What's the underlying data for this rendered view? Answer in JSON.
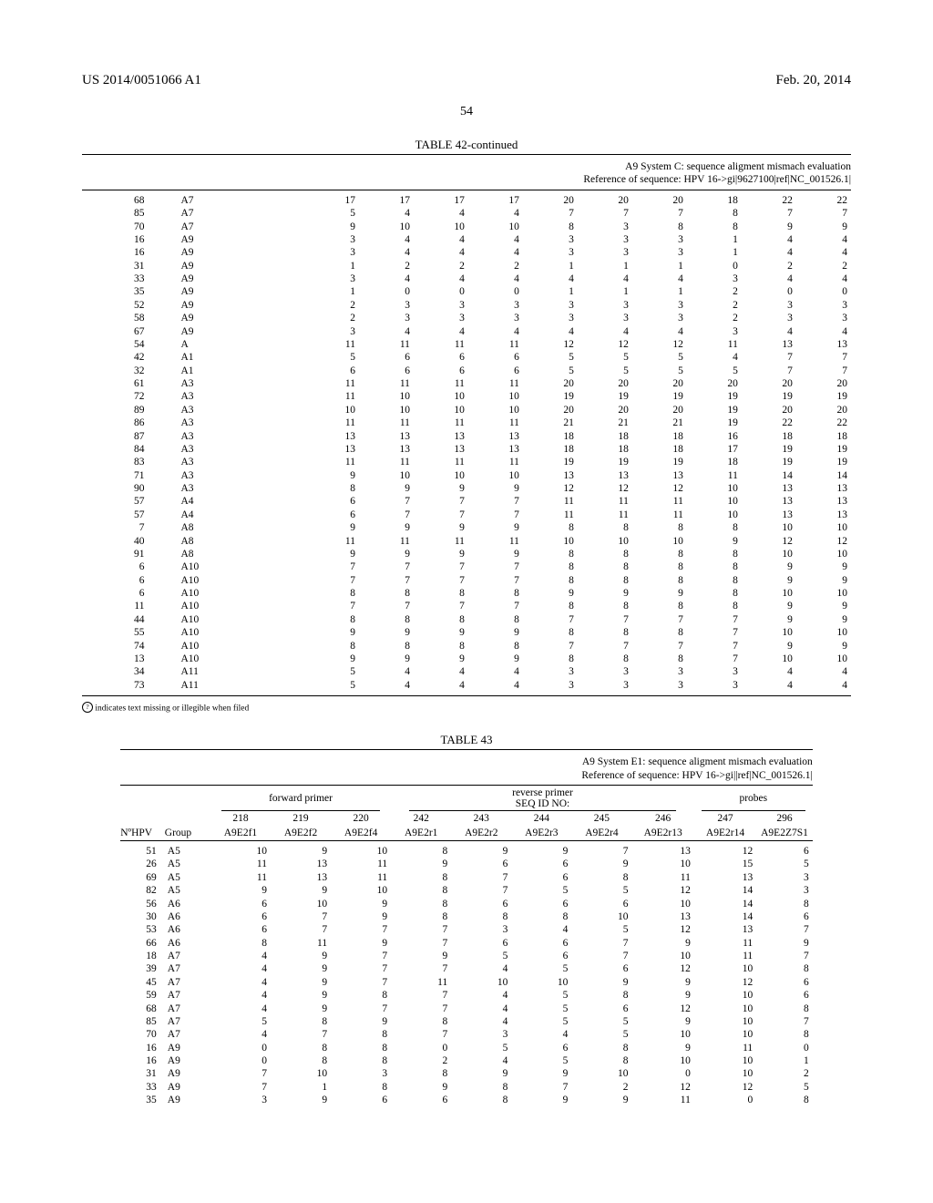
{
  "header": {
    "pub_no": "US 2014/0051066 A1",
    "date": "Feb. 20, 2014",
    "page_center": "54"
  },
  "table42": {
    "caption": "TABLE 42-continued",
    "subtitle_line1": "A9 System C: sequence aligment mismach evaluation",
    "subtitle_line2": "Reference of sequence: HPV 16->gi|9627100|ref|NC_001526.1|",
    "rows": [
      [
        68,
        "A7",
        17,
        17,
        17,
        17,
        20,
        20,
        20,
        18,
        22,
        22
      ],
      [
        85,
        "A7",
        5,
        4,
        4,
        4,
        7,
        7,
        7,
        8,
        7,
        7
      ],
      [
        70,
        "A7",
        9,
        10,
        10,
        10,
        8,
        3,
        8,
        8,
        9,
        9
      ],
      [
        16,
        "A9",
        3,
        4,
        4,
        4,
        3,
        3,
        3,
        1,
        4,
        4
      ],
      [
        16,
        "A9",
        3,
        4,
        4,
        4,
        3,
        3,
        3,
        1,
        4,
        4
      ],
      [
        31,
        "A9",
        1,
        2,
        2,
        2,
        1,
        1,
        1,
        0,
        2,
        2
      ],
      [
        33,
        "A9",
        3,
        4,
        4,
        4,
        4,
        4,
        4,
        3,
        4,
        4
      ],
      [
        35,
        "A9",
        1,
        0,
        0,
        0,
        1,
        1,
        1,
        2,
        0,
        0
      ],
      [
        52,
        "A9",
        2,
        3,
        3,
        3,
        3,
        3,
        3,
        2,
        3,
        3
      ],
      [
        58,
        "A9",
        2,
        3,
        3,
        3,
        3,
        3,
        3,
        2,
        3,
        3
      ],
      [
        67,
        "A9",
        3,
        4,
        4,
        4,
        4,
        4,
        4,
        3,
        4,
        4
      ],
      [
        54,
        "A",
        11,
        11,
        11,
        11,
        12,
        12,
        12,
        11,
        13,
        13
      ],
      [
        42,
        "A1",
        5,
        6,
        6,
        6,
        5,
        5,
        5,
        4,
        7,
        7
      ],
      [
        32,
        "A1",
        6,
        6,
        6,
        6,
        5,
        5,
        5,
        5,
        7,
        7
      ],
      [
        61,
        "A3",
        11,
        11,
        11,
        11,
        20,
        20,
        20,
        20,
        20,
        20
      ],
      [
        72,
        "A3",
        11,
        10,
        10,
        10,
        19,
        19,
        19,
        19,
        19,
        19
      ],
      [
        89,
        "A3",
        10,
        10,
        10,
        10,
        20,
        20,
        20,
        19,
        20,
        20
      ],
      [
        86,
        "A3",
        11,
        11,
        11,
        11,
        21,
        21,
        21,
        19,
        22,
        22
      ],
      [
        87,
        "A3",
        13,
        13,
        13,
        13,
        18,
        18,
        18,
        16,
        18,
        18
      ],
      [
        84,
        "A3",
        13,
        13,
        13,
        13,
        18,
        18,
        18,
        17,
        19,
        19
      ],
      [
        83,
        "A3",
        11,
        11,
        11,
        11,
        19,
        19,
        19,
        18,
        19,
        19
      ],
      [
        71,
        "A3",
        9,
        10,
        10,
        10,
        13,
        13,
        13,
        11,
        14,
        14
      ],
      [
        90,
        "A3",
        8,
        9,
        9,
        9,
        12,
        12,
        12,
        10,
        13,
        13
      ],
      [
        57,
        "A4",
        6,
        7,
        7,
        7,
        11,
        11,
        11,
        10,
        13,
        13
      ],
      [
        57,
        "A4",
        6,
        7,
        7,
        7,
        11,
        11,
        11,
        10,
        13,
        13
      ],
      [
        7,
        "A8",
        9,
        9,
        9,
        9,
        8,
        8,
        8,
        8,
        10,
        10
      ],
      [
        40,
        "A8",
        11,
        11,
        11,
        11,
        10,
        10,
        10,
        9,
        12,
        12
      ],
      [
        91,
        "A8",
        9,
        9,
        9,
        9,
        8,
        8,
        8,
        8,
        10,
        10
      ],
      [
        6,
        "A10",
        7,
        7,
        7,
        7,
        8,
        8,
        8,
        8,
        9,
        9
      ],
      [
        6,
        "A10",
        7,
        7,
        7,
        7,
        8,
        8,
        8,
        8,
        9,
        9
      ],
      [
        6,
        "A10",
        8,
        8,
        8,
        8,
        9,
        9,
        9,
        8,
        10,
        10
      ],
      [
        11,
        "A10",
        7,
        7,
        7,
        7,
        8,
        8,
        8,
        8,
        9,
        9
      ],
      [
        44,
        "A10",
        8,
        8,
        8,
        8,
        7,
        7,
        7,
        7,
        9,
        9
      ],
      [
        55,
        "A10",
        9,
        9,
        9,
        9,
        8,
        8,
        8,
        7,
        10,
        10
      ],
      [
        74,
        "A10",
        8,
        8,
        8,
        8,
        7,
        7,
        7,
        7,
        9,
        9
      ],
      [
        13,
        "A10",
        9,
        9,
        9,
        9,
        8,
        8,
        8,
        7,
        10,
        10
      ],
      [
        34,
        "A11",
        5,
        4,
        4,
        4,
        3,
        3,
        3,
        3,
        4,
        4
      ],
      [
        73,
        "A11",
        5,
        4,
        4,
        4,
        3,
        3,
        3,
        3,
        4,
        4
      ]
    ],
    "footnote": "indicates text missing or illegible when filed",
    "footnote_symbol": "?"
  },
  "table43": {
    "caption": "TABLE 43",
    "subtitle_line1": "A9 System E1: sequence aligment mismach evaluation",
    "subtitle_line2": "Reference of sequence: HPV 16->gi||ref|NC_001526.1|",
    "group_headers": {
      "fwd": "forward primer",
      "seq": "SEQ ID NO:",
      "rev": "reverse primer",
      "probes": "probes"
    },
    "row1_headers": [
      "NºHPV",
      "Group",
      "218",
      "219",
      "220",
      "242",
      "243",
      "244",
      "245",
      "246",
      "247",
      "296"
    ],
    "row2_headers": [
      "",
      "",
      "A9E2f1",
      "A9E2f2",
      "A9E2f4",
      "A9E2r1",
      "A9E2r2",
      "A9E2r3",
      "A9E2r4",
      "A9E2r13",
      "A9E2r14",
      "A9E2Z7S1"
    ],
    "rows": [
      [
        51,
        "A5",
        10,
        9,
        10,
        8,
        9,
        9,
        7,
        13,
        12,
        6
      ],
      [
        26,
        "A5",
        11,
        13,
        11,
        9,
        6,
        6,
        9,
        10,
        15,
        5
      ],
      [
        69,
        "A5",
        11,
        13,
        11,
        8,
        7,
        6,
        8,
        11,
        13,
        3
      ],
      [
        82,
        "A5",
        9,
        9,
        10,
        8,
        7,
        5,
        5,
        12,
        14,
        3
      ],
      [
        56,
        "A6",
        6,
        10,
        9,
        8,
        6,
        6,
        6,
        10,
        14,
        8
      ],
      [
        30,
        "A6",
        6,
        7,
        9,
        8,
        8,
        8,
        10,
        13,
        14,
        6
      ],
      [
        53,
        "A6",
        6,
        7,
        7,
        7,
        3,
        4,
        5,
        12,
        13,
        7
      ],
      [
        66,
        "A6",
        8,
        11,
        9,
        7,
        6,
        6,
        7,
        9,
        11,
        9
      ],
      [
        18,
        "A7",
        4,
        9,
        7,
        9,
        5,
        6,
        7,
        10,
        11,
        7
      ],
      [
        39,
        "A7",
        4,
        9,
        7,
        7,
        4,
        5,
        6,
        12,
        10,
        8
      ],
      [
        45,
        "A7",
        4,
        9,
        7,
        11,
        10,
        10,
        9,
        9,
        12,
        6
      ],
      [
        59,
        "A7",
        4,
        9,
        8,
        7,
        4,
        5,
        8,
        9,
        10,
        6
      ],
      [
        68,
        "A7",
        4,
        9,
        7,
        7,
        4,
        5,
        6,
        12,
        10,
        8
      ],
      [
        85,
        "A7",
        5,
        8,
        9,
        8,
        4,
        5,
        5,
        9,
        10,
        7
      ],
      [
        70,
        "A7",
        4,
        7,
        8,
        7,
        3,
        4,
        5,
        10,
        10,
        8
      ],
      [
        16,
        "A9",
        0,
        8,
        8,
        0,
        5,
        6,
        8,
        9,
        11,
        0
      ],
      [
        16,
        "A9",
        0,
        8,
        8,
        2,
        4,
        5,
        8,
        10,
        10,
        1
      ],
      [
        31,
        "A9",
        7,
        10,
        3,
        8,
        9,
        9,
        10,
        0,
        10,
        2
      ],
      [
        33,
        "A9",
        7,
        1,
        8,
        9,
        8,
        7,
        2,
        12,
        12,
        5
      ],
      [
        35,
        "A9",
        3,
        9,
        6,
        6,
        8,
        9,
        9,
        11,
        0,
        8
      ]
    ]
  }
}
